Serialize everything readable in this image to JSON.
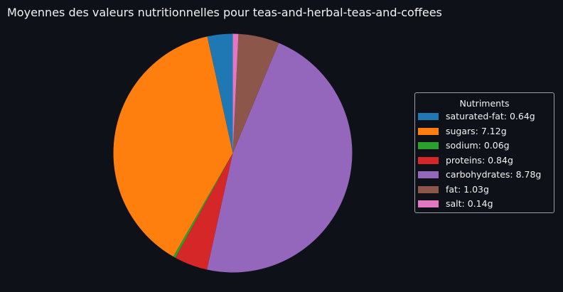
{
  "chart_data": {
    "type": "pie",
    "title": "Moyennes des valeurs nutritionnelles pour teas-and-herbal-teas-and-coffees",
    "legend_title": "Nutriments",
    "legend_position": "right",
    "slices": [
      {
        "label": "saturated-fat: 0.64g",
        "value": 0.64,
        "color": "#1f77b4"
      },
      {
        "label": "sugars: 7.12g",
        "value": 7.12,
        "color": "#ff7f0e"
      },
      {
        "label": "sodium: 0.06g",
        "value": 0.06,
        "color": "#2ca02c"
      },
      {
        "label": "proteins: 0.84g",
        "value": 0.84,
        "color": "#d62728"
      },
      {
        "label": "carbohydrates: 8.78g",
        "value": 8.78,
        "color": "#9467bd"
      },
      {
        "label": "fat: 1.03g",
        "value": 1.03,
        "color": "#8c564b"
      },
      {
        "label": "salt: 0.14g",
        "value": 0.14,
        "color": "#e377c2"
      }
    ]
  }
}
